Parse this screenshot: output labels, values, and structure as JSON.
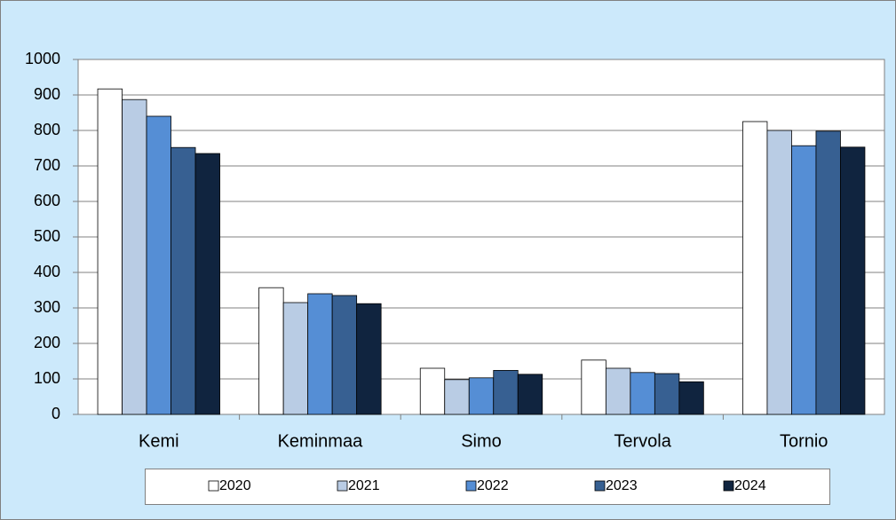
{
  "chart_data": {
    "type": "bar",
    "categories": [
      "Kemi",
      "Keminmaa",
      "Simo",
      "Tervola",
      "Tornio"
    ],
    "series": [
      {
        "name": "2020",
        "color": "#ffffff",
        "values": [
          917,
          357,
          130,
          153,
          825
        ]
      },
      {
        "name": "2021",
        "color": "#b9cce4",
        "values": [
          887,
          315,
          98,
          130,
          800
        ]
      },
      {
        "name": "2022",
        "color": "#558ed5",
        "values": [
          840,
          340,
          103,
          118,
          757
        ]
      },
      {
        "name": "2023",
        "color": "#376092",
        "values": [
          752,
          335,
          124,
          115,
          798
        ]
      },
      {
        "name": "2024",
        "color": "#10243f",
        "values": [
          735,
          312,
          113,
          92,
          753
        ]
      }
    ],
    "ylim": [
      0,
      1000
    ],
    "yticks": [
      0,
      100,
      200,
      300,
      400,
      500,
      600,
      700,
      800,
      900,
      1000
    ],
    "grid": true,
    "legend": "bottom"
  }
}
